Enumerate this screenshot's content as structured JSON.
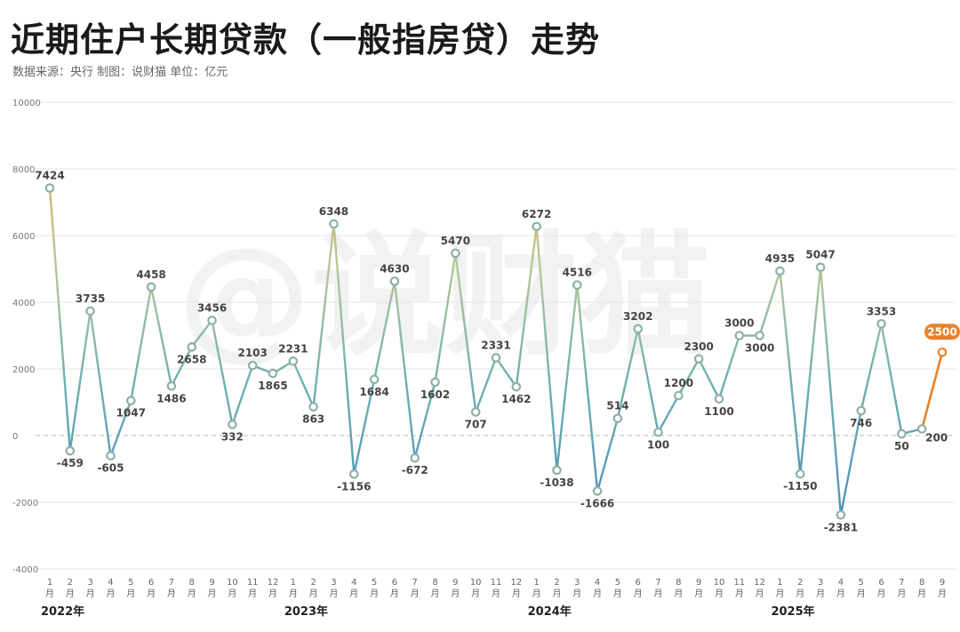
{
  "header": {
    "title": "近期住户长期贷款（一般指房贷）走势",
    "subtitle": "数据来源：央行   制图：说财猫   单位：亿元"
  },
  "watermark": "@说财猫",
  "colors": {
    "line": "#5aa0b0",
    "highlight": "#e8822a",
    "marker": "#8fb0a8",
    "grid": "#e6e6e6"
  },
  "chart_data": {
    "type": "line",
    "ylim": [
      -4000,
      10000
    ],
    "yticks": [
      -4000,
      -2000,
      0,
      2000,
      4000,
      6000,
      8000,
      10000
    ],
    "month_labels": [
      "1",
      "2",
      "3",
      "4",
      "5",
      "6",
      "7",
      "8",
      "9",
      "10",
      "11",
      "12",
      "1",
      "2",
      "3",
      "4",
      "5",
      "6",
      "7",
      "8",
      "9",
      "10",
      "11",
      "12",
      "1",
      "2",
      "3",
      "4",
      "5",
      "6",
      "7",
      "8",
      "9",
      "10",
      "11",
      "12",
      "1",
      "2",
      "3",
      "4",
      "5",
      "6",
      "7",
      "8",
      "9"
    ],
    "month_suffix": "月",
    "years": [
      {
        "label": "2022年",
        "start_index": 0
      },
      {
        "label": "2023年",
        "start_index": 12
      },
      {
        "label": "2024年",
        "start_index": 24
      },
      {
        "label": "2025年",
        "start_index": 36
      }
    ],
    "values": [
      7424,
      -459,
      3735,
      -605,
      1047,
      4458,
      1486,
      2658,
      3456,
      332,
      2103,
      1865,
      2231,
      863,
      6348,
      -1156,
      1684,
      4630,
      -672,
      1602,
      5470,
      707,
      2331,
      1462,
      6272,
      -1038,
      4516,
      -1666,
      514,
      3202,
      100,
      1200,
      2300,
      1100,
      3000,
      3000,
      4935,
      -1150,
      5047,
      -2381,
      746,
      3353,
      50,
      200,
      2500
    ],
    "highlight_index": 44
  }
}
